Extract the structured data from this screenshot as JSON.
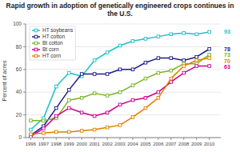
{
  "chart_data": {
    "type": "line",
    "title": "Rapid growth in adoption of genetically engineered crops continues in the U.S.",
    "y_label": "Percent of acres",
    "x": [
      1996,
      1997,
      1998,
      1999,
      2000,
      2001,
      2002,
      2003,
      2004,
      2005,
      2006,
      2007,
      2008,
      2009,
      2010
    ],
    "xlim": [
      1995.6,
      2010.9
    ],
    "xticks": [
      1996,
      1997,
      1998,
      1999,
      2000,
      2001,
      2002,
      2003,
      2004,
      2005,
      2006,
      2007,
      2008,
      2009,
      2010
    ],
    "ylim": [
      0,
      100
    ],
    "yticks": [
      0,
      20,
      40,
      60,
      80,
      100
    ],
    "grid": true,
    "legend": "upper left",
    "marker": "square",
    "series": [
      {
        "name": "HT soybeans",
        "color": "#20C0C8",
        "values": [
          7,
          17,
          45,
          57,
          54,
          68,
          75,
          81,
          85,
          87,
          89,
          91,
          92,
          91,
          93
        ]
      },
      {
        "name": "HT cotton",
        "color": "#1C1C8C",
        "values": [
          2,
          10,
          26,
          42,
          56,
          56,
          56,
          60,
          60,
          66,
          70,
          70,
          68,
          71,
          78
        ]
      },
      {
        "name": "Bt cotton",
        "color": "#78B428",
        "values": [
          15,
          15,
          17,
          33,
          35,
          39,
          37,
          40,
          46,
          52,
          57,
          59,
          65,
          65,
          73
        ]
      },
      {
        "name": "Bt corn",
        "color": "#D0008C",
        "values": [
          1,
          8,
          19,
          26,
          22,
          19,
          22,
          29,
          33,
          35,
          40,
          49,
          57,
          63,
          63
        ]
      },
      {
        "name": "HT corn",
        "color": "#E08000",
        "values": [
          3,
          4,
          5,
          5,
          6,
          7,
          9,
          11,
          18,
          26,
          35,
          52,
          63,
          68,
          70
        ]
      }
    ]
  }
}
